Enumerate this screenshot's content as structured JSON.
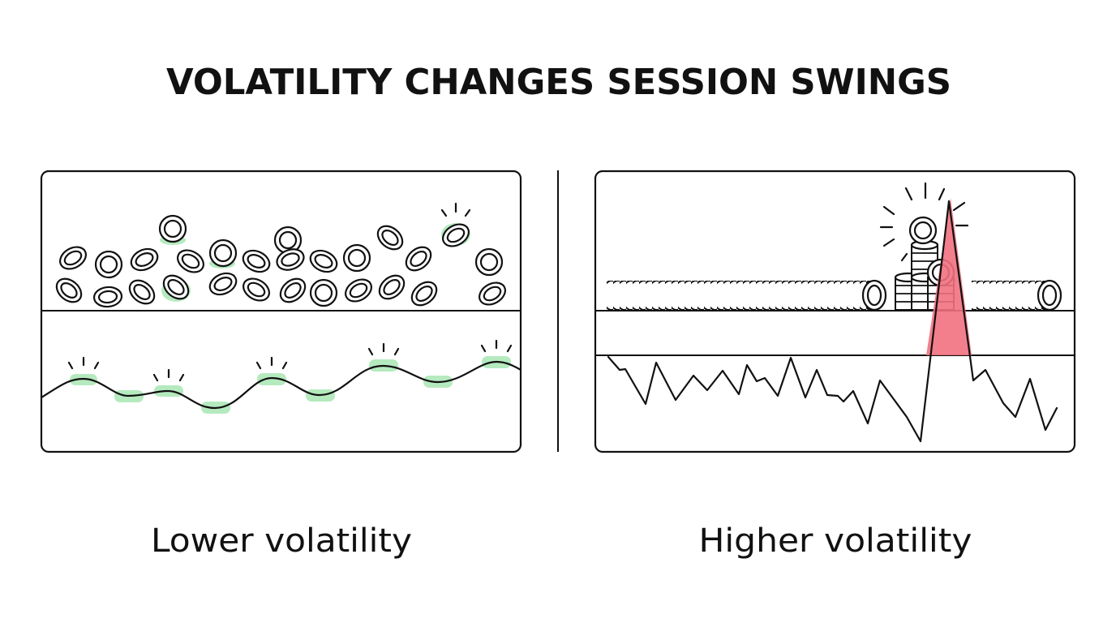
{
  "title": "VOLATILITY CHANGES SESSION SWINGS",
  "panels": [
    {
      "label": "Lower volatility"
    },
    {
      "label": "Higher volatility"
    }
  ]
}
